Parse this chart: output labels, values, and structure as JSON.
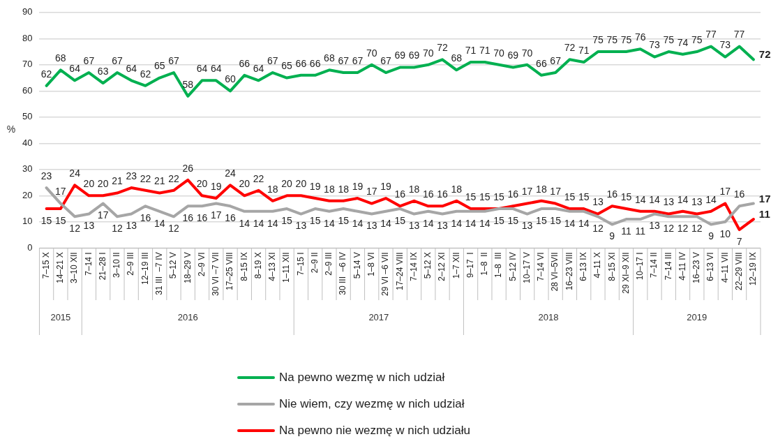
{
  "chart_data": {
    "type": "line",
    "ylabel": "%",
    "categories": [
      "7–15 X",
      "14–21 X",
      "3–10 XII",
      "7–14 I",
      "21–28 I",
      "3–10 II",
      "2–9 III",
      "12–19 III",
      "31 III  –7 IV",
      "5–12 V",
      "18–29 V",
      "2–9 VI",
      "30 VI –7 VII",
      "17–25 VIII",
      "8–15 IX",
      "8–19 X",
      "4–13 XI",
      "1–11 XII",
      "7–15 I",
      "2–9 II",
      "2–9 III",
      "30 III  –6 IV",
      "5–14 V",
      "1–8 VI",
      "29 VI –6 VII",
      "17–24 VIII",
      "7–14 IX",
      "5–12 X",
      "2–12 XI",
      "1–7 XII",
      "9–17  I",
      "1–8  II",
      "1–8  III",
      "5–12 IV",
      "10–17 V",
      "7–14 VI",
      "28 VI–5VII",
      "16–23 VIII",
      "6–13 IX",
      "4–11 X",
      "8–15 XI",
      "29 XI–9 XII",
      "10–17 I",
      "7–14 II",
      "7–14 III",
      "4–11 IV",
      "16–23 V",
      "6–13 VI",
      "4–11 VII",
      "22–29 VIII",
      "12–19 IX"
    ],
    "series": [
      {
        "name": "Na pewno wezmę w nich udział",
        "color": "#00b050",
        "values": [
          62,
          68,
          64,
          67,
          63,
          67,
          64,
          62,
          65,
          67,
          58,
          64,
          64,
          60,
          66,
          64,
          67,
          65,
          66,
          66,
          68,
          67,
          67,
          70,
          67,
          69,
          69,
          70,
          72,
          68,
          71,
          71,
          70,
          69,
          70,
          66,
          67,
          72,
          71,
          75,
          75,
          75,
          76,
          73,
          75,
          74,
          75,
          77,
          73,
          77,
          72
        ]
      },
      {
        "name": "Nie wiem, czy wezmę w nich udział",
        "color": "#a6a6a6",
        "values": [
          23,
          17,
          12,
          13,
          17,
          12,
          13,
          16,
          14,
          12,
          16,
          16,
          17,
          16,
          14,
          14,
          14,
          15,
          13,
          15,
          14,
          15,
          14,
          13,
          14,
          15,
          13,
          14,
          13,
          14,
          14,
          14,
          15,
          15,
          13,
          15,
          15,
          14,
          14,
          12,
          9,
          11,
          11,
          13,
          12,
          12,
          12,
          9,
          10,
          16,
          17
        ]
      },
      {
        "name": "Na pewno nie wezmę w nich udziału",
        "color": "#ff0000",
        "values": [
          15,
          15,
          24,
          20,
          20,
          21,
          23,
          22,
          21,
          22,
          26,
          20,
          19,
          24,
          20,
          22,
          18,
          20,
          20,
          19,
          18,
          18,
          19,
          17,
          19,
          16,
          18,
          16,
          16,
          18,
          15,
          15,
          15,
          16,
          17,
          18,
          17,
          15,
          15,
          13,
          16,
          15,
          14,
          14,
          13,
          14,
          13,
          14,
          17,
          7,
          11
        ]
      }
    ],
    "ylim": [
      0,
      90
    ],
    "yticks": [
      0,
      10,
      20,
      30,
      40,
      50,
      60,
      70,
      80,
      90
    ],
    "grid": "y",
    "legend": "bottom",
    "marker": "none",
    "line_style": "solid",
    "data_labels": true,
    "annotations": [
      "2015",
      "2016",
      "2017",
      "2018",
      "2019"
    ]
  }
}
